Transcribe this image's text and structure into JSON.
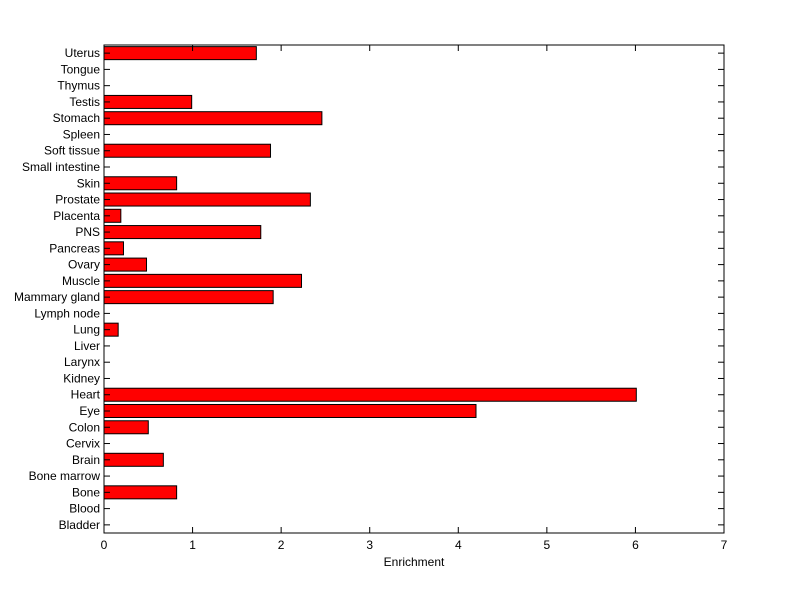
{
  "chart_data": {
    "type": "bar",
    "orientation": "horizontal",
    "categories": [
      "Uterus",
      "Tongue",
      "Thymus",
      "Testis",
      "Stomach",
      "Spleen",
      "Soft tissue",
      "Small intestine",
      "Skin",
      "Prostate",
      "Placenta",
      "PNS",
      "Pancreas",
      "Ovary",
      "Muscle",
      "Mammary gland",
      "Lymph node",
      "Lung",
      "Liver",
      "Larynx",
      "Kidney",
      "Heart",
      "Eye",
      "Colon",
      "Cervix",
      "Brain",
      "Bone marrow",
      "Bone",
      "Blood",
      "Bladder"
    ],
    "values": [
      1.72,
      0,
      0,
      0.99,
      2.46,
      0,
      1.88,
      0,
      0.82,
      2.33,
      0.19,
      1.77,
      0.22,
      0.48,
      2.23,
      1.91,
      0,
      0.16,
      0,
      0,
      0,
      6.01,
      4.2,
      0.5,
      0,
      0.67,
      0,
      0.82,
      0,
      0
    ],
    "title": "",
    "xlabel": "Enrichment",
    "ylabel": "",
    "xlim": [
      0,
      7
    ],
    "xticks": [
      "0",
      "1",
      "2",
      "3",
      "4",
      "5",
      "6",
      "7"
    ],
    "grid": false,
    "bar_color": "#ff0000",
    "edge_color": "#000000"
  }
}
